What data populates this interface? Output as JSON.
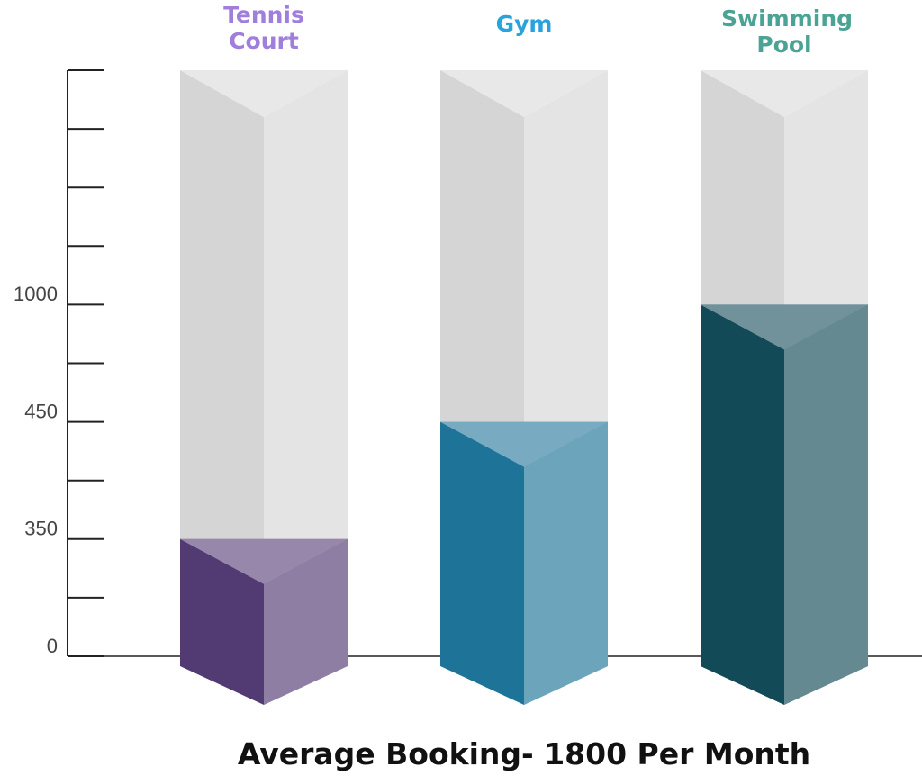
{
  "chart_data": {
    "type": "bar3d",
    "title": "Average Booking- 1800 Per Month",
    "categories": [
      "Tennis Court",
      "Gym",
      "Swimming Pool"
    ],
    "values": [
      350,
      450,
      1000
    ],
    "colors": [
      "#523a73",
      "#1e7399",
      "#134a57"
    ],
    "label_colors": [
      "#a07fdc",
      "#29a3dc",
      "#4aa394"
    ],
    "yticks": [
      0,
      350,
      450,
      1000
    ]
  }
}
